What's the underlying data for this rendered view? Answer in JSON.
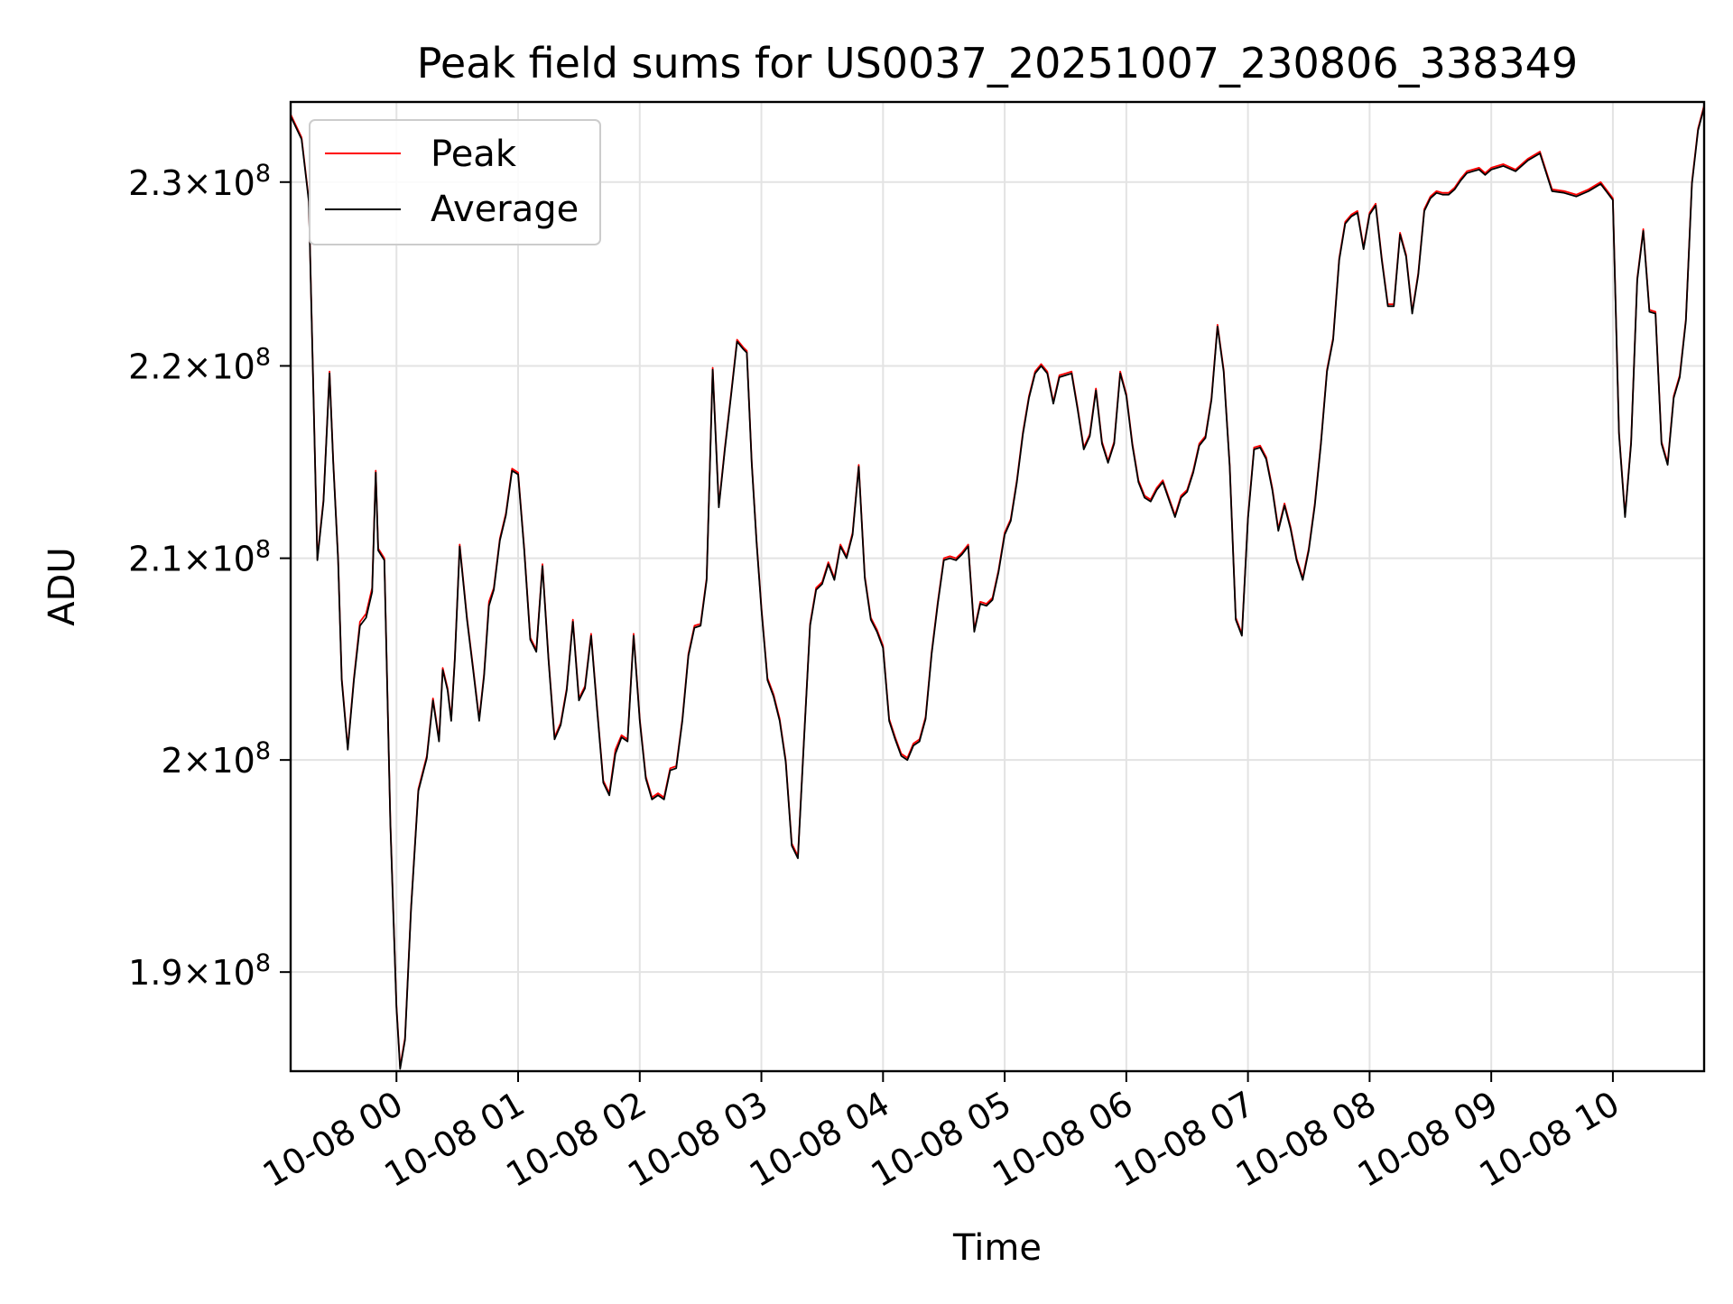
{
  "chart_data": {
    "type": "line",
    "title": "Peak field sums for US0037_20251007_230806_338349",
    "xlabel": "Time",
    "ylabel": "ADU",
    "y_scale": "log",
    "ylim": [
      185500000,
      234500000
    ],
    "xlim_hours": [
      -0.87,
      10.75
    ],
    "grid": true,
    "legend": {
      "position": "top-left",
      "entries": [
        "Peak",
        "Average"
      ]
    },
    "x_ticks": [
      {
        "hour": 0,
        "label": "10-08 00"
      },
      {
        "hour": 1,
        "label": "10-08 01"
      },
      {
        "hour": 2,
        "label": "10-08 02"
      },
      {
        "hour": 3,
        "label": "10-08 03"
      },
      {
        "hour": 4,
        "label": "10-08 04"
      },
      {
        "hour": 5,
        "label": "10-08 05"
      },
      {
        "hour": 6,
        "label": "10-08 06"
      },
      {
        "hour": 7,
        "label": "10-08 07"
      },
      {
        "hour": 8,
        "label": "10-08 08"
      },
      {
        "hour": 9,
        "label": "10-08 09"
      },
      {
        "hour": 10,
        "label": "10-08 10"
      }
    ],
    "y_ticks": [
      {
        "value": 190000000,
        "mantissa": "1.9",
        "exponent": "8"
      },
      {
        "value": 200000000,
        "mantissa": "2",
        "exponent": "8"
      },
      {
        "value": 210000000,
        "mantissa": "2.1",
        "exponent": "8"
      },
      {
        "value": 220000000,
        "mantissa": "2.2",
        "exponent": "8"
      },
      {
        "value": 230000000,
        "mantissa": "2.3",
        "exponent": "8"
      }
    ],
    "series": [
      {
        "name": "Peak",
        "color": "#ff0000",
        "x_hours": [
          -0.87,
          -0.78,
          -0.72,
          -0.65,
          -0.6,
          -0.55,
          -0.52,
          -0.48,
          -0.45,
          -0.4,
          -0.35,
          -0.3,
          -0.25,
          -0.2,
          -0.17,
          -0.15,
          -0.1,
          -0.05,
          0.0,
          0.03,
          0.07,
          0.12,
          0.18,
          0.25,
          0.3,
          0.35,
          0.38,
          0.42,
          0.45,
          0.48,
          0.52,
          0.58,
          0.63,
          0.68,
          0.72,
          0.76,
          0.8,
          0.85,
          0.9,
          0.95,
          1.0,
          1.05,
          1.1,
          1.15,
          1.2,
          1.25,
          1.3,
          1.35,
          1.4,
          1.45,
          1.5,
          1.55,
          1.6,
          1.65,
          1.7,
          1.75,
          1.8,
          1.85,
          1.9,
          1.95,
          2.0,
          2.05,
          2.1,
          2.15,
          2.2,
          2.25,
          2.3,
          2.35,
          2.4,
          2.45,
          2.5,
          2.55,
          2.6,
          2.65,
          2.7,
          2.75,
          2.8,
          2.85,
          2.88,
          2.92,
          2.96,
          3.0,
          3.05,
          3.1,
          3.15,
          3.2,
          3.25,
          3.3,
          3.35,
          3.4,
          3.45,
          3.5,
          3.55,
          3.6,
          3.65,
          3.7,
          3.75,
          3.8,
          3.85,
          3.9,
          3.95,
          4.0,
          4.05,
          4.1,
          4.15,
          4.2,
          4.25,
          4.3,
          4.35,
          4.4,
          4.45,
          4.5,
          4.55,
          4.6,
          4.65,
          4.7,
          4.75,
          4.8,
          4.85,
          4.9,
          4.95,
          5.0,
          5.05,
          5.1,
          5.15,
          5.2,
          5.25,
          5.3,
          5.35,
          5.4,
          5.45,
          5.5,
          5.55,
          5.6,
          5.65,
          5.7,
          5.75,
          5.8,
          5.85,
          5.9,
          5.95,
          6.0,
          6.05,
          6.1,
          6.15,
          6.2,
          6.25,
          6.3,
          6.35,
          6.4,
          6.45,
          6.5,
          6.55,
          6.6,
          6.65,
          6.7,
          6.75,
          6.8,
          6.85,
          6.9,
          6.95,
          7.0,
          7.05,
          7.1,
          7.15,
          7.2,
          7.25,
          7.3,
          7.35,
          7.4,
          7.45,
          7.5,
          7.55,
          7.6,
          7.65,
          7.7,
          7.75,
          7.8,
          7.85,
          7.9,
          7.95,
          8.0,
          8.05,
          8.1,
          8.15,
          8.2,
          8.25,
          8.3,
          8.35,
          8.4,
          8.45,
          8.5,
          8.55,
          8.6,
          8.65,
          8.7,
          8.75,
          8.8,
          8.85,
          8.9,
          8.95,
          9.0,
          9.1,
          9.2,
          9.3,
          9.4,
          9.5,
          9.6,
          9.7,
          9.8,
          9.9,
          10.0,
          10.05,
          10.1,
          10.15,
          10.2,
          10.25,
          10.3,
          10.35,
          10.4,
          10.45,
          10.5,
          10.55,
          10.6,
          10.65,
          10.7,
          10.75
        ],
        "values": [
          233800000,
          232500000,
          229000000,
          210000000,
          213000000,
          219700000,
          215000000,
          210000000,
          204000000,
          200600000,
          204000000,
          206800000,
          207200000,
          208500000,
          214500000,
          210500000,
          210000000,
          197000000,
          188500000,
          185700000,
          187000000,
          193000000,
          198600000,
          200200000,
          203000000,
          201000000,
          204500000,
          203500000,
          202000000,
          205000000,
          210700000,
          207000000,
          204500000,
          202000000,
          204200000,
          207800000,
          208500000,
          211000000,
          212300000,
          214600000,
          214400000,
          210500000,
          206000000,
          205400000,
          209700000,
          205000000,
          201100000,
          201800000,
          203500000,
          206900000,
          203000000,
          203600000,
          206200000,
          202500000,
          199000000,
          198400000,
          200500000,
          201200000,
          201000000,
          206200000,
          202000000,
          199200000,
          198200000,
          198400000,
          198200000,
          199600000,
          199700000,
          202000000,
          205200000,
          206600000,
          206700000,
          209000000,
          219900000,
          212700000,
          215700000,
          218500000,
          221400000,
          221000000,
          220800000,
          215000000,
          210900000,
          207500000,
          204000000,
          203200000,
          202000000,
          200000000,
          196000000,
          195400000,
          201000000,
          206700000,
          208500000,
          208800000,
          209800000,
          209000000,
          210700000,
          210100000,
          211300000,
          214800000,
          209100000,
          207000000,
          206400000,
          205600000,
          202000000,
          201100000,
          200300000,
          200100000,
          200800000,
          201000000,
          202100000,
          205300000,
          207800000,
          210000000,
          210100000,
          210000000,
          210300000,
          210700000,
          206400000,
          207800000,
          207700000,
          208000000,
          209400000,
          211300000,
          212000000,
          214000000,
          216500000,
          218400000,
          219700000,
          220100000,
          219700000,
          218100000,
          219500000,
          219600000,
          219700000,
          217800000,
          215700000,
          216400000,
          218800000,
          216000000,
          215000000,
          216000000,
          219700000,
          218500000,
          215900000,
          214000000,
          213200000,
          213000000,
          213600000,
          214000000,
          213100000,
          212200000,
          213200000,
          213500000,
          214500000,
          215900000,
          216300000,
          218300000,
          222200000,
          219800000,
          214800000,
          207000000,
          206200000,
          212100000,
          215700000,
          215800000,
          215200000,
          213600000,
          211500000,
          212800000,
          211600000,
          210000000,
          209000000,
          210500000,
          212800000,
          216000000,
          219800000,
          221500000,
          225800000,
          227800000,
          228200000,
          228400000,
          226400000,
          228300000,
          228800000,
          225800000,
          223300000,
          223300000,
          227200000,
          226000000,
          222900000,
          225000000,
          228500000,
          229200000,
          229500000,
          229400000,
          229400000,
          229700000,
          230200000,
          230600000,
          230700000,
          230800000,
          230500000,
          230800000,
          231000000,
          230700000,
          231300000,
          231700000,
          229600000,
          229500000,
          229300000,
          229600000,
          230000000,
          229100000,
          216500000,
          212200000,
          216000000,
          224700000,
          227400000,
          223000000,
          222900000,
          216000000,
          214900000,
          218400000,
          219500000,
          222500000,
          230000000,
          233000000,
          234300000
        ]
      },
      {
        "name": "Average",
        "color": "#000000",
        "x_hours": [
          -0.87,
          -0.78,
          -0.72,
          -0.65,
          -0.6,
          -0.55,
          -0.52,
          -0.48,
          -0.45,
          -0.4,
          -0.35,
          -0.3,
          -0.25,
          -0.2,
          -0.17,
          -0.15,
          -0.1,
          -0.05,
          0.0,
          0.03,
          0.07,
          0.12,
          0.18,
          0.25,
          0.3,
          0.35,
          0.38,
          0.42,
          0.45,
          0.48,
          0.52,
          0.58,
          0.63,
          0.68,
          0.72,
          0.76,
          0.8,
          0.85,
          0.9,
          0.95,
          1.0,
          1.05,
          1.1,
          1.15,
          1.2,
          1.25,
          1.3,
          1.35,
          1.4,
          1.45,
          1.5,
          1.55,
          1.6,
          1.65,
          1.7,
          1.75,
          1.8,
          1.85,
          1.9,
          1.95,
          2.0,
          2.05,
          2.1,
          2.15,
          2.2,
          2.25,
          2.3,
          2.35,
          2.4,
          2.45,
          2.5,
          2.55,
          2.6,
          2.65,
          2.7,
          2.75,
          2.8,
          2.85,
          2.88,
          2.92,
          2.96,
          3.0,
          3.05,
          3.1,
          3.15,
          3.2,
          3.25,
          3.3,
          3.35,
          3.4,
          3.45,
          3.5,
          3.55,
          3.6,
          3.65,
          3.7,
          3.75,
          3.8,
          3.85,
          3.9,
          3.95,
          4.0,
          4.05,
          4.1,
          4.15,
          4.2,
          4.25,
          4.3,
          4.35,
          4.4,
          4.45,
          4.5,
          4.55,
          4.6,
          4.65,
          4.7,
          4.75,
          4.8,
          4.85,
          4.9,
          4.95,
          5.0,
          5.05,
          5.1,
          5.15,
          5.2,
          5.25,
          5.3,
          5.35,
          5.4,
          5.45,
          5.5,
          5.55,
          5.6,
          5.65,
          5.7,
          5.75,
          5.8,
          5.85,
          5.9,
          5.95,
          6.0,
          6.05,
          6.1,
          6.15,
          6.2,
          6.25,
          6.3,
          6.35,
          6.4,
          6.45,
          6.5,
          6.55,
          6.6,
          6.65,
          6.7,
          6.75,
          6.8,
          6.85,
          6.9,
          6.95,
          7.0,
          7.05,
          7.1,
          7.15,
          7.2,
          7.25,
          7.3,
          7.35,
          7.4,
          7.45,
          7.5,
          7.55,
          7.6,
          7.65,
          7.7,
          7.75,
          7.8,
          7.85,
          7.9,
          7.95,
          8.0,
          8.05,
          8.1,
          8.15,
          8.2,
          8.25,
          8.3,
          8.35,
          8.4,
          8.45,
          8.5,
          8.55,
          8.6,
          8.65,
          8.7,
          8.75,
          8.8,
          8.85,
          8.9,
          8.95,
          9.0,
          9.1,
          9.2,
          9.3,
          9.4,
          9.5,
          9.6,
          9.7,
          9.8,
          9.9,
          10.0,
          10.05,
          10.1,
          10.15,
          10.2,
          10.25,
          10.3,
          10.35,
          10.4,
          10.45,
          10.5,
          10.55,
          10.6,
          10.65,
          10.7,
          10.75
        ],
        "values": [
          233700000,
          232400000,
          228900000,
          209900000,
          212900000,
          219600000,
          214900000,
          209900000,
          203900000,
          200500000,
          203900000,
          206600000,
          207000000,
          208300000,
          214400000,
          210400000,
          209900000,
          196900000,
          188400000,
          185600000,
          186900000,
          192900000,
          198500000,
          200100000,
          202900000,
          200900000,
          204400000,
          203400000,
          201900000,
          204900000,
          210600000,
          206900000,
          204400000,
          201900000,
          204100000,
          207600000,
          208400000,
          210900000,
          212200000,
          214500000,
          214300000,
          210400000,
          205900000,
          205300000,
          209600000,
          204900000,
          201000000,
          201700000,
          203400000,
          206800000,
          202900000,
          203500000,
          206100000,
          202400000,
          198900000,
          198300000,
          200300000,
          201100000,
          200900000,
          206100000,
          201900000,
          199100000,
          198100000,
          198300000,
          198100000,
          199500000,
          199600000,
          201900000,
          205100000,
          206500000,
          206600000,
          208900000,
          219800000,
          212600000,
          215600000,
          218400000,
          221300000,
          220900000,
          220700000,
          214900000,
          210800000,
          207400000,
          203900000,
          203100000,
          201900000,
          199900000,
          195900000,
          195300000,
          200900000,
          206600000,
          208400000,
          208700000,
          209700000,
          208900000,
          210600000,
          210000000,
          211200000,
          214700000,
          209000000,
          206900000,
          206300000,
          205500000,
          201900000,
          201000000,
          200200000,
          200000000,
          200700000,
          200900000,
          202000000,
          205200000,
          207700000,
          209900000,
          210000000,
          209900000,
          210200000,
          210600000,
          206300000,
          207700000,
          207600000,
          207900000,
          209300000,
          211200000,
          211900000,
          213900000,
          216400000,
          218300000,
          219600000,
          220000000,
          219600000,
          218000000,
          219400000,
          219500000,
          219600000,
          217700000,
          215600000,
          216300000,
          218700000,
          215900000,
          214900000,
          215900000,
          219600000,
          218400000,
          215800000,
          213900000,
          213100000,
          212900000,
          213500000,
          213900000,
          213000000,
          212100000,
          213100000,
          213400000,
          214400000,
          215800000,
          216200000,
          218200000,
          222100000,
          219700000,
          214700000,
          206900000,
          206100000,
          212000000,
          215600000,
          215700000,
          215100000,
          213500000,
          211400000,
          212700000,
          211500000,
          209900000,
          208900000,
          210400000,
          212700000,
          215900000,
          219700000,
          221400000,
          225700000,
          227700000,
          228100000,
          228300000,
          226300000,
          228200000,
          228700000,
          225700000,
          223200000,
          223200000,
          227100000,
          225900000,
          222800000,
          224900000,
          228400000,
          229100000,
          229400000,
          229300000,
          229300000,
          229600000,
          230100000,
          230500000,
          230600000,
          230700000,
          230400000,
          230700000,
          230900000,
          230600000,
          231200000,
          231600000,
          229500000,
          229400000,
          229200000,
          229500000,
          229900000,
          229000000,
          216400000,
          212100000,
          215900000,
          224600000,
          227300000,
          222900000,
          222800000,
          215900000,
          214800000,
          218300000,
          219400000,
          222400000,
          229900000,
          232900000,
          234200000
        ]
      }
    ]
  }
}
